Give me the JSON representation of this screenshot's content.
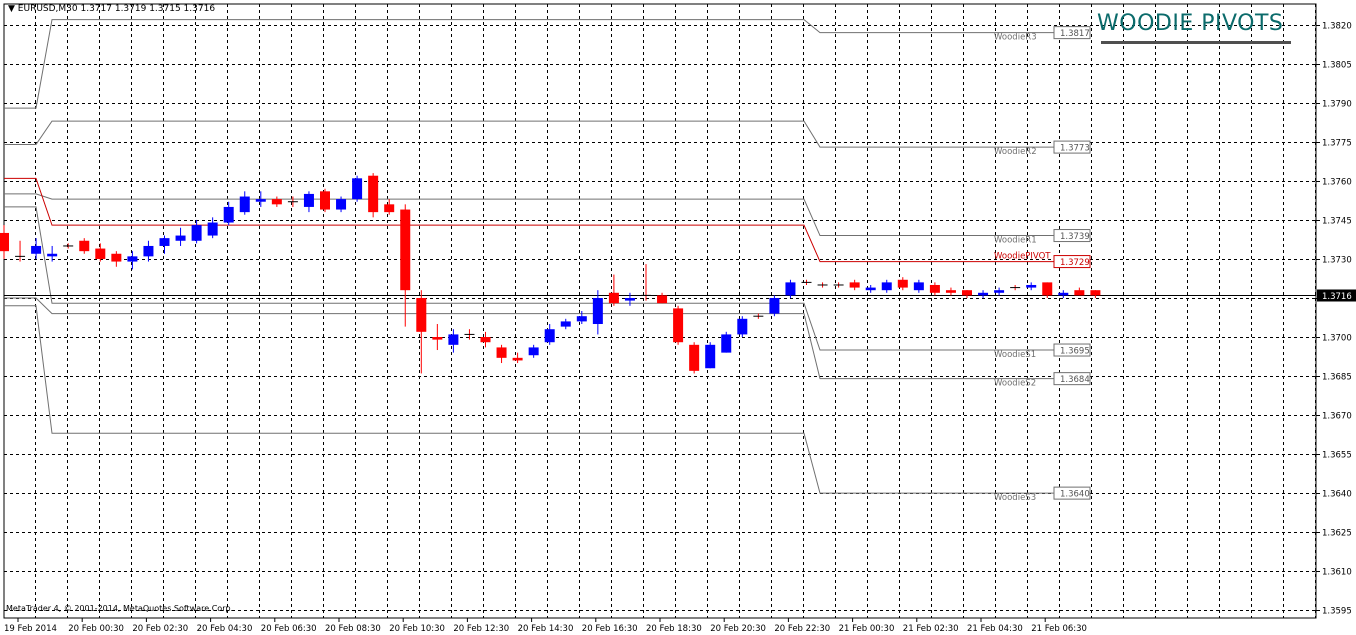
{
  "window": {
    "symbol_info": "EURUSD,M30  1.3717 1.3719 1.3715 1.3716",
    "copyright": "MetaTrader 4, © 2001-2014, MetaQuotes Software Corp.",
    "brand_title": "WOODIE PIVOTS"
  },
  "colors": {
    "bull": "#0000ff",
    "bear": "#ff0000",
    "grid": "#000000",
    "level": "#707070",
    "pivot": "#cc0000",
    "brand": "#0b6b6b"
  },
  "chart_data": {
    "type": "candlestick",
    "timeframe": "M30",
    "symbol": "EURUSD",
    "ylim": [
      1.3592,
      1.3828
    ],
    "yticks": [
      "1.3820",
      "1.3805",
      "1.3790",
      "1.3775",
      "1.3760",
      "1.3745",
      "1.3730",
      "1.3715",
      "1.3700",
      "1.3685",
      "1.3670",
      "1.3655",
      "1.3640",
      "1.3625",
      "1.3610",
      "1.3595"
    ],
    "xticks": [
      "19 Feb 2014",
      "20 Feb 00:30",
      "20 Feb 02:30",
      "20 Feb 04:30",
      "20 Feb 06:30",
      "20 Feb 08:30",
      "20 Feb 10:30",
      "20 Feb 12:30",
      "20 Feb 14:30",
      "20 Feb 16:30",
      "20 Feb 18:30",
      "20 Feb 20:30",
      "20 Feb 22:30",
      "21 Feb 00:30",
      "21 Feb 02:30",
      "21 Feb 04:30",
      "21 Feb 06:30"
    ],
    "current_price": "1.3716",
    "candles": [
      {
        "o": 1.374,
        "h": 1.3743,
        "l": 1.373,
        "c": 1.3733
      },
      {
        "o": 1.3731,
        "h": 1.3737,
        "l": 1.3729,
        "c": 1.3731
      },
      {
        "o": 1.3732,
        "h": 1.3738,
        "l": 1.373,
        "c": 1.3735
      },
      {
        "o": 1.3731,
        "h": 1.3735,
        "l": 1.3729,
        "c": 1.3732
      },
      {
        "o": 1.3735,
        "h": 1.3736,
        "l": 1.3734,
        "c": 1.3735
      },
      {
        "o": 1.3737,
        "h": 1.3738,
        "l": 1.3732,
        "c": 1.3733
      },
      {
        "o": 1.3734,
        "h": 1.3736,
        "l": 1.3729,
        "c": 1.373
      },
      {
        "o": 1.3732,
        "h": 1.3733,
        "l": 1.3727,
        "c": 1.3729
      },
      {
        "o": 1.3729,
        "h": 1.3733,
        "l": 1.3726,
        "c": 1.3731
      },
      {
        "o": 1.3731,
        "h": 1.3737,
        "l": 1.3729,
        "c": 1.3735
      },
      {
        "o": 1.3735,
        "h": 1.3739,
        "l": 1.3732,
        "c": 1.3738
      },
      {
        "o": 1.3737,
        "h": 1.3742,
        "l": 1.3735,
        "c": 1.3739
      },
      {
        "o": 1.3737,
        "h": 1.3745,
        "l": 1.3736,
        "c": 1.3743
      },
      {
        "o": 1.3739,
        "h": 1.3746,
        "l": 1.3738,
        "c": 1.3744
      },
      {
        "o": 1.3744,
        "h": 1.3752,
        "l": 1.3743,
        "c": 1.375
      },
      {
        "o": 1.3748,
        "h": 1.3756,
        "l": 1.3747,
        "c": 1.3754
      },
      {
        "o": 1.3752,
        "h": 1.3756,
        "l": 1.375,
        "c": 1.3753
      },
      {
        "o": 1.3753,
        "h": 1.3754,
        "l": 1.375,
        "c": 1.3751
      },
      {
        "o": 1.3752,
        "h": 1.3754,
        "l": 1.375,
        "c": 1.3752
      },
      {
        "o": 1.375,
        "h": 1.3756,
        "l": 1.3748,
        "c": 1.3755
      },
      {
        "o": 1.3756,
        "h": 1.3757,
        "l": 1.3748,
        "c": 1.3749
      },
      {
        "o": 1.3749,
        "h": 1.3754,
        "l": 1.3748,
        "c": 1.3753
      },
      {
        "o": 1.3753,
        "h": 1.3762,
        "l": 1.3752,
        "c": 1.3761
      },
      {
        "o": 1.3762,
        "h": 1.3763,
        "l": 1.3746,
        "c": 1.3748
      },
      {
        "o": 1.3751,
        "h": 1.3753,
        "l": 1.3747,
        "c": 1.3748
      },
      {
        "o": 1.3749,
        "h": 1.3751,
        "l": 1.3704,
        "c": 1.3718
      },
      {
        "o": 1.3715,
        "h": 1.3718,
        "l": 1.3686,
        "c": 1.3702
      },
      {
        "o": 1.37,
        "h": 1.3705,
        "l": 1.3695,
        "c": 1.3699
      },
      {
        "o": 1.3697,
        "h": 1.3703,
        "l": 1.3694,
        "c": 1.3701
      },
      {
        "o": 1.3701,
        "h": 1.3703,
        "l": 1.3699,
        "c": 1.3701
      },
      {
        "o": 1.37,
        "h": 1.3702,
        "l": 1.3696,
        "c": 1.3698
      },
      {
        "o": 1.3696,
        "h": 1.3697,
        "l": 1.369,
        "c": 1.3692
      },
      {
        "o": 1.3692,
        "h": 1.3694,
        "l": 1.369,
        "c": 1.3691
      },
      {
        "o": 1.3693,
        "h": 1.3697,
        "l": 1.3692,
        "c": 1.3696
      },
      {
        "o": 1.3698,
        "h": 1.3705,
        "l": 1.3697,
        "c": 1.3703
      },
      {
        "o": 1.3704,
        "h": 1.3707,
        "l": 1.3703,
        "c": 1.3706
      },
      {
        "o": 1.3706,
        "h": 1.371,
        "l": 1.3705,
        "c": 1.3708
      },
      {
        "o": 1.3705,
        "h": 1.3718,
        "l": 1.3701,
        "c": 1.3715
      },
      {
        "o": 1.3717,
        "h": 1.3724,
        "l": 1.3712,
        "c": 1.3713
      },
      {
        "o": 1.3714,
        "h": 1.3717,
        "l": 1.3712,
        "c": 1.3715
      },
      {
        "o": 1.3716,
        "h": 1.3728,
        "l": 1.3714,
        "c": 1.3716
      },
      {
        "o": 1.3716,
        "h": 1.3717,
        "l": 1.3713,
        "c": 1.3713
      },
      {
        "o": 1.3711,
        "h": 1.3712,
        "l": 1.3697,
        "c": 1.3698
      },
      {
        "o": 1.3697,
        "h": 1.3698,
        "l": 1.3686,
        "c": 1.3687
      },
      {
        "o": 1.3688,
        "h": 1.3698,
        "l": 1.3688,
        "c": 1.3697
      },
      {
        "o": 1.3694,
        "h": 1.3702,
        "l": 1.3694,
        "c": 1.3701
      },
      {
        "o": 1.3701,
        "h": 1.3708,
        "l": 1.37,
        "c": 1.3707
      },
      {
        "o": 1.3708,
        "h": 1.3709,
        "l": 1.3707,
        "c": 1.3708
      },
      {
        "o": 1.3709,
        "h": 1.3716,
        "l": 1.3708,
        "c": 1.3715
      },
      {
        "o": 1.3716,
        "h": 1.3722,
        "l": 1.3715,
        "c": 1.3721
      },
      {
        "o": 1.3721,
        "h": 1.3722,
        "l": 1.372,
        "c": 1.3721
      },
      {
        "o": 1.372,
        "h": 1.3721,
        "l": 1.3719,
        "c": 1.372
      },
      {
        "o": 1.372,
        "h": 1.3721,
        "l": 1.3719,
        "c": 1.372
      },
      {
        "o": 1.3721,
        "h": 1.3722,
        "l": 1.3718,
        "c": 1.3719
      },
      {
        "o": 1.3718,
        "h": 1.372,
        "l": 1.3717,
        "c": 1.3719
      },
      {
        "o": 1.3718,
        "h": 1.3722,
        "l": 1.3717,
        "c": 1.3721
      },
      {
        "o": 1.3722,
        "h": 1.3723,
        "l": 1.3718,
        "c": 1.3719
      },
      {
        "o": 1.3718,
        "h": 1.3722,
        "l": 1.3717,
        "c": 1.3721
      },
      {
        "o": 1.372,
        "h": 1.3721,
        "l": 1.3716,
        "c": 1.3717
      },
      {
        "o": 1.3718,
        "h": 1.3719,
        "l": 1.3716,
        "c": 1.3717
      },
      {
        "o": 1.3718,
        "h": 1.3718,
        "l": 1.3715,
        "c": 1.3716
      },
      {
        "o": 1.3716,
        "h": 1.3718,
        "l": 1.3715,
        "c": 1.3717
      },
      {
        "o": 1.3717,
        "h": 1.3719,
        "l": 1.3716,
        "c": 1.3718
      },
      {
        "o": 1.3719,
        "h": 1.372,
        "l": 1.3718,
        "c": 1.3719
      },
      {
        "o": 1.3719,
        "h": 1.3721,
        "l": 1.3718,
        "c": 1.372
      },
      {
        "o": 1.3721,
        "h": 1.3721,
        "l": 1.3715,
        "c": 1.3716
      },
      {
        "o": 1.3716,
        "h": 1.3718,
        "l": 1.3715,
        "c": 1.3717
      },
      {
        "o": 1.3718,
        "h": 1.3719,
        "l": 1.3716,
        "c": 1.3716
      },
      {
        "o": 1.3718,
        "h": 1.3718,
        "l": 1.3715,
        "c": 1.3716
      }
    ],
    "levels": [
      {
        "name": "WoodieR3",
        "label": "1.3817",
        "value": 1.3817,
        "prev": 1.3822,
        "prev2": 1.3788
      },
      {
        "name": "WoodieR2",
        "label": "1.3773",
        "value": 1.3773,
        "prev": 1.3783,
        "prev2": 1.3774
      },
      {
        "name": "WoodieR1",
        "label": "1.3739",
        "value": 1.3739,
        "prev": 1.3753,
        "prev2": 1.3755
      },
      {
        "name": "WoodiePIVOT",
        "label": "1.3729",
        "value": 1.3729,
        "prev": 1.3743,
        "prev2": 1.3761
      },
      {
        "name": "WoodieS1",
        "label": "1.3695",
        "value": 1.3695,
        "prev": 1.3713,
        "prev2": 1.375
      },
      {
        "name": "WoodieS2",
        "label": "1.3684",
        "value": 1.3684,
        "prev": 1.3709,
        "prev2": 1.3715
      },
      {
        "name": "WoodieS3",
        "label": "1.3640",
        "value": 1.364,
        "prev": 1.3663,
        "prev2": 1.3712
      }
    ]
  }
}
